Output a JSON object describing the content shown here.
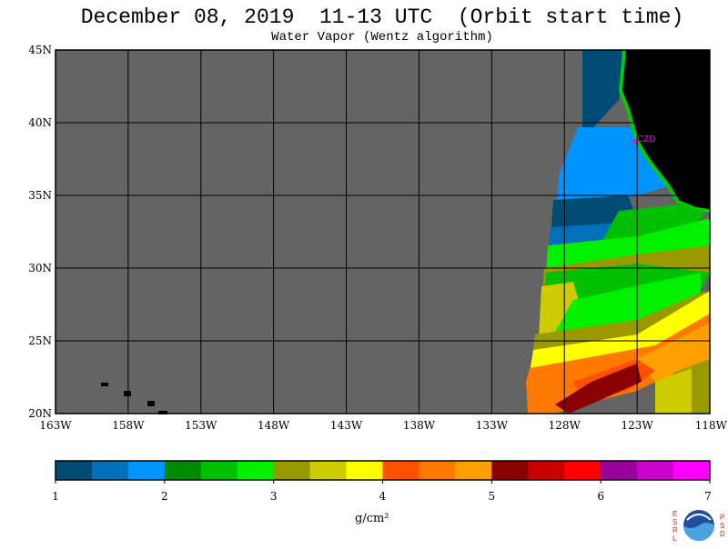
{
  "title": "December 08, 2019  11-13 UTC  (Orbit start time)",
  "subtitle": "Water Vapor (Wentz algorithm)",
  "station_label": "CZD",
  "lat_labels": [
    "45N",
    "40N",
    "35N",
    "30N",
    "25N",
    "20N"
  ],
  "lon_labels": [
    "163W",
    "158W",
    "153W",
    "148W",
    "143W",
    "138W",
    "133W",
    "128W",
    "123W",
    "118W"
  ],
  "colorbar": {
    "ticks": [
      "1",
      "2",
      "3",
      "4",
      "5",
      "6",
      "7"
    ],
    "units": "g/cm²",
    "colors": [
      "#004b73",
      "#0070b8",
      "#0094ff",
      "#008a00",
      "#00c000",
      "#00f000",
      "#999900",
      "#cccc00",
      "#ffff00",
      "#ff5000",
      "#ff7800",
      "#ffa000",
      "#8b0000",
      "#c80000",
      "#ff0000",
      "#990099",
      "#cc00cc",
      "#ff00ff"
    ]
  },
  "map_colors": {
    "nodata": "#646464",
    "land": "#000000",
    "coast": "#00cc00",
    "grid": "#000000",
    "station": "#ff00ff"
  },
  "logo_letters": {
    "left": [
      "E",
      "S",
      "R",
      "L"
    ],
    "right": [
      "P",
      "S",
      "D"
    ]
  }
}
